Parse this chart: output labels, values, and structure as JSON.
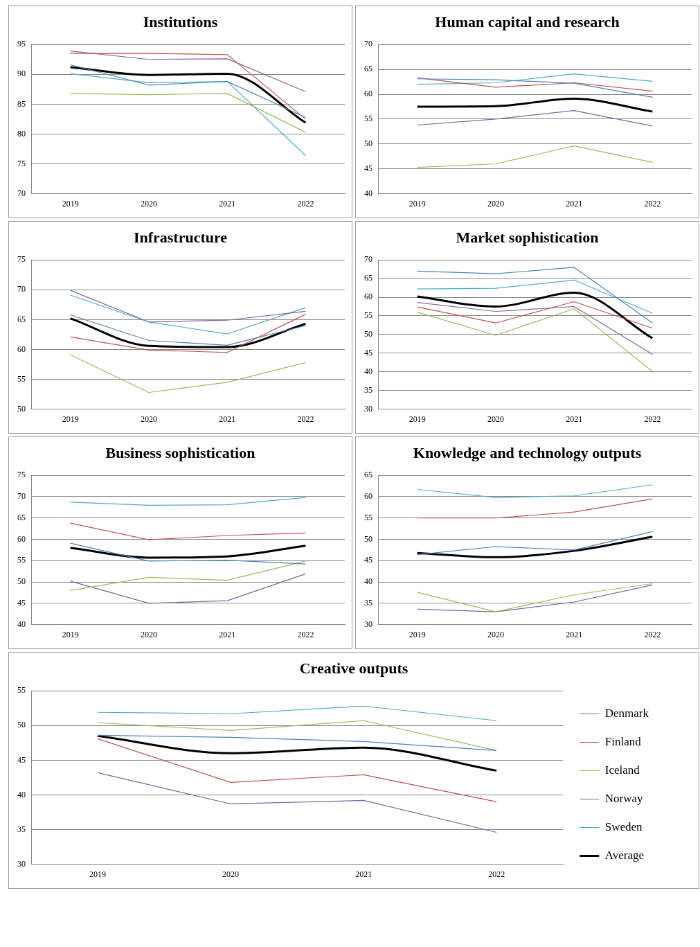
{
  "chart_data": [
    {
      "type": "line",
      "title": "Institutions",
      "categories": [
        "2019",
        "2020",
        "2021",
        "2022"
      ],
      "ylim": [
        70,
        95
      ],
      "yticks": [
        70,
        75,
        80,
        85,
        90,
        95
      ],
      "grid": "y",
      "legend": false,
      "series": [
        {
          "color": "#4f81bd",
          "values": [
            91.6,
            88.2,
            88.8,
            82.8
          ]
        },
        {
          "color": "#c0504d",
          "values": [
            93.5,
            93.5,
            93.3,
            82.5
          ]
        },
        {
          "color": "#9bbb59",
          "values": [
            86.8,
            86.6,
            86.8,
            80.3
          ]
        },
        {
          "color": "#8064a2",
          "values": [
            93.9,
            92.5,
            92.6,
            87.1
          ]
        },
        {
          "color": "#4bacc6",
          "values": [
            90.1,
            88.6,
            88.8,
            76.4
          ]
        },
        {
          "color": "#000000",
          "values": [
            91.2,
            89.9,
            90.1,
            81.9
          ]
        }
      ]
    },
    {
      "type": "line",
      "title": "Human capital and research",
      "categories": [
        "2019",
        "2020",
        "2021",
        "2022"
      ],
      "ylim": [
        40,
        70
      ],
      "yticks": [
        40,
        45,
        50,
        55,
        60,
        65,
        70
      ],
      "grid": "y",
      "legend": false,
      "series": [
        {
          "color": "#4f81bd",
          "values": [
            63.1,
            62.9,
            62.2,
            59.4
          ]
        },
        {
          "color": "#c0504d",
          "values": [
            63.3,
            61.4,
            62.3,
            60.6
          ]
        },
        {
          "color": "#9bbb59",
          "values": [
            45.3,
            46.0,
            49.6,
            46.3
          ]
        },
        {
          "color": "#8064a2",
          "values": [
            53.8,
            55.0,
            56.7,
            53.6
          ]
        },
        {
          "color": "#4bacc6",
          "values": [
            62.0,
            62.3,
            64.1,
            62.6
          ]
        },
        {
          "color": "#000000",
          "values": [
            57.5,
            57.6,
            59.1,
            56.5
          ]
        }
      ]
    },
    {
      "type": "line",
      "title": "Infrastructure",
      "categories": [
        "2019",
        "2020",
        "2021",
        "2022"
      ],
      "ylim": [
        50,
        75
      ],
      "yticks": [
        50,
        55,
        60,
        65,
        70,
        75
      ],
      "grid": "y",
      "legend": false,
      "series": [
        {
          "color": "#4f81bd",
          "values": [
            65.8,
            61.5,
            60.7,
            64.0
          ]
        },
        {
          "color": "#c0504d",
          "values": [
            62.1,
            59.9,
            59.5,
            65.9
          ]
        },
        {
          "color": "#9bbb59",
          "values": [
            59.1,
            52.8,
            54.5,
            57.8
          ]
        },
        {
          "color": "#8064a2",
          "values": [
            69.9,
            64.6,
            64.9,
            66.4
          ]
        },
        {
          "color": "#4bacc6",
          "values": [
            69.1,
            64.6,
            62.6,
            67.0
          ]
        },
        {
          "color": "#000000",
          "values": [
            65.2,
            60.6,
            60.4,
            64.3
          ]
        }
      ]
    },
    {
      "type": "line",
      "title": "Market sophistication",
      "categories": [
        "2019",
        "2020",
        "2021",
        "2022"
      ],
      "ylim": [
        30,
        70
      ],
      "yticks": [
        30,
        35,
        40,
        45,
        50,
        55,
        60,
        65,
        70
      ],
      "grid": "y",
      "legend": false,
      "series": [
        {
          "color": "#4f81bd",
          "values": [
            67.0,
            66.3,
            68.0,
            53.1
          ]
        },
        {
          "color": "#c0504d",
          "values": [
            57.4,
            53.1,
            58.8,
            51.7
          ]
        },
        {
          "color": "#9bbb59",
          "values": [
            56.0,
            49.8,
            56.9,
            40.1
          ]
        },
        {
          "color": "#8064a2",
          "values": [
            58.6,
            56.2,
            57.5,
            44.7
          ]
        },
        {
          "color": "#4bacc6",
          "values": [
            62.2,
            62.4,
            64.6,
            55.7
          ]
        },
        {
          "color": "#000000",
          "values": [
            60.2,
            57.5,
            61.2,
            49.0
          ]
        }
      ]
    },
    {
      "type": "line",
      "title": "Business sophistication",
      "categories": [
        "2019",
        "2020",
        "2021",
        "2022"
      ],
      "ylim": [
        40,
        75
      ],
      "yticks": [
        40,
        45,
        50,
        55,
        60,
        65,
        70,
        75
      ],
      "grid": "y",
      "legend": false,
      "series": [
        {
          "color": "#4f81bd",
          "values": [
            59.1,
            54.9,
            55.1,
            54.2
          ]
        },
        {
          "color": "#c0504d",
          "values": [
            63.8,
            59.9,
            60.9,
            61.5
          ]
        },
        {
          "color": "#9bbb59",
          "values": [
            48.0,
            51.1,
            50.4,
            54.9
          ]
        },
        {
          "color": "#8064a2",
          "values": [
            50.2,
            45.0,
            45.6,
            51.9
          ]
        },
        {
          "color": "#4bacc6",
          "values": [
            68.7,
            68.0,
            68.1,
            69.8
          ]
        },
        {
          "color": "#000000",
          "values": [
            58.0,
            55.7,
            56.0,
            58.5
          ]
        }
      ]
    },
    {
      "type": "line",
      "title": "Knowledge and technology outputs",
      "categories": [
        "2019",
        "2020",
        "2021",
        "2022"
      ],
      "ylim": [
        30,
        65
      ],
      "yticks": [
        30,
        35,
        40,
        45,
        50,
        55,
        60,
        65
      ],
      "grid": "y",
      "legend": false,
      "series": [
        {
          "color": "#4f81bd",
          "values": [
            46.4,
            48.3,
            47.5,
            51.8
          ]
        },
        {
          "color": "#c0504d",
          "values": [
            55.0,
            55.0,
            56.4,
            59.5
          ]
        },
        {
          "color": "#9bbb59",
          "values": [
            37.6,
            33.0,
            37.0,
            39.6
          ]
        },
        {
          "color": "#8064a2",
          "values": [
            33.6,
            33.0,
            35.3,
            39.3
          ]
        },
        {
          "color": "#4bacc6",
          "values": [
            61.7,
            59.8,
            60.2,
            62.8
          ]
        },
        {
          "color": "#000000",
          "values": [
            46.8,
            45.8,
            47.3,
            50.6
          ]
        }
      ]
    },
    {
      "type": "line",
      "title": "Creative outputs",
      "categories": [
        "2019",
        "2020",
        "2021",
        "2022"
      ],
      "ylim": [
        30,
        55
      ],
      "yticks": [
        30,
        35,
        40,
        45,
        50,
        55
      ],
      "grid": "y",
      "legend": "right",
      "series": [
        {
          "name": "Denmark",
          "color": "#4f81bd",
          "values": [
            48.6,
            48.3,
            47.7,
            46.4
          ]
        },
        {
          "name": "Finland",
          "color": "#c0504d",
          "values": [
            48.1,
            41.8,
            42.9,
            39.0
          ]
        },
        {
          "name": "Iceland",
          "color": "#9bbb59",
          "values": [
            50.4,
            49.3,
            50.7,
            46.4
          ]
        },
        {
          "name": "Norway",
          "color": "#8064a2",
          "values": [
            43.2,
            38.7,
            39.2,
            34.6
          ]
        },
        {
          "name": "Sweden",
          "color": "#4bacc6",
          "values": [
            51.9,
            51.7,
            52.8,
            50.7
          ]
        },
        {
          "name": "Average",
          "color": "#000000",
          "values": [
            48.5,
            46.0,
            46.8,
            43.5
          ]
        }
      ]
    }
  ]
}
